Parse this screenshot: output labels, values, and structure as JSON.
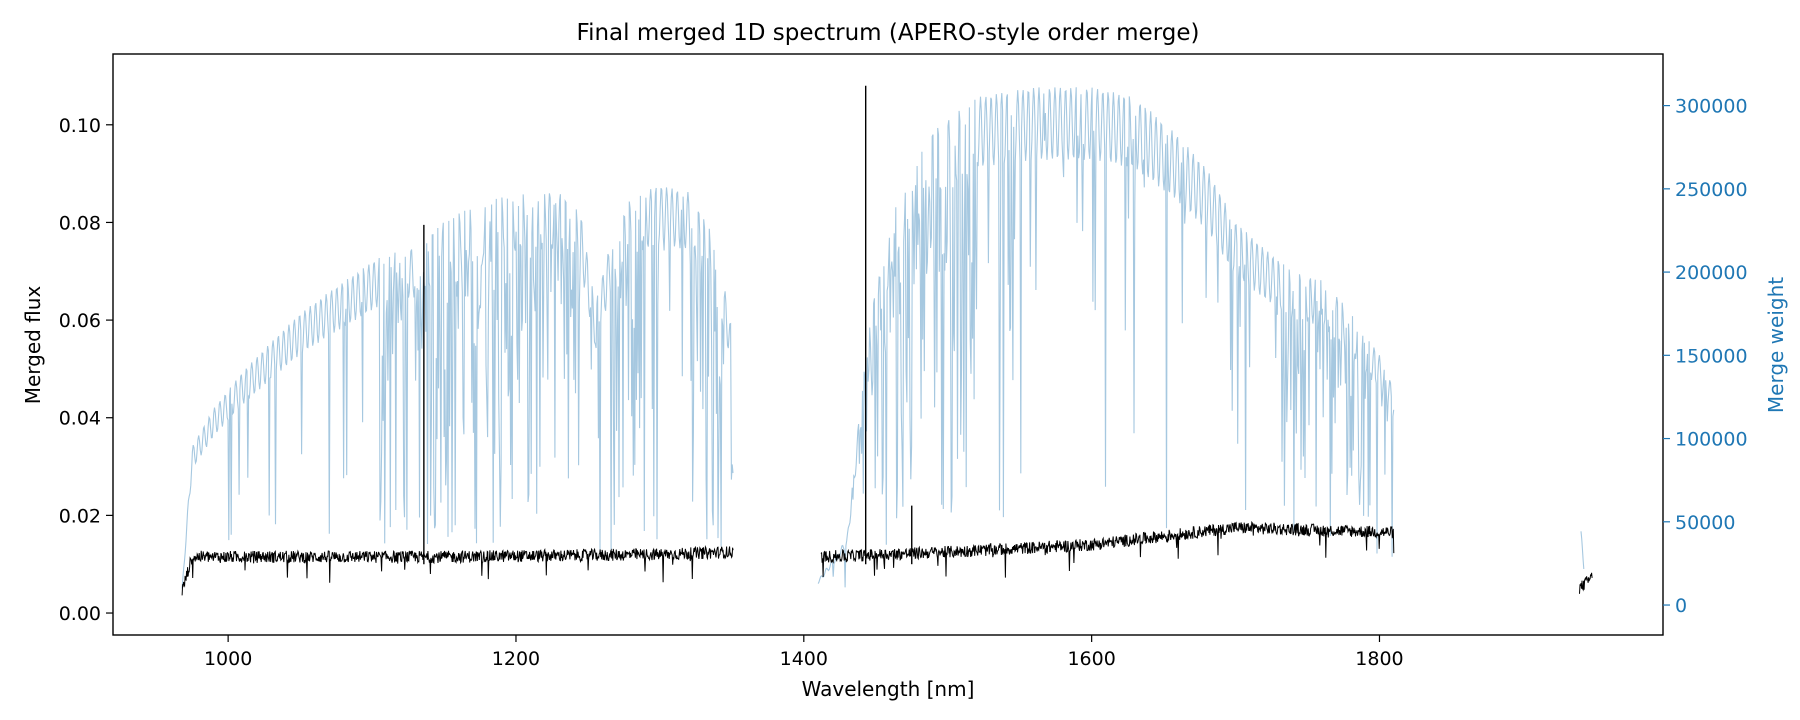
{
  "chart_data": {
    "type": "line",
    "title": "Final merged 1D spectrum (APERO-style order merge)",
    "xlabel": "Wavelength [nm]",
    "ylabel_left": "Merged flux",
    "ylabel_right": "Merge weight",
    "xlim": [
      920,
      1997
    ],
    "ylim_left": [
      -0.0045,
      0.1145
    ],
    "ylim_right": [
      -18000,
      331000
    ],
    "x_ticks": [
      1000,
      1200,
      1400,
      1600,
      1800
    ],
    "y_ticks_left": [
      0.0,
      0.02,
      0.04,
      0.06,
      0.08,
      0.1
    ],
    "y_ticks_left_labels": [
      "0.00",
      "0.02",
      "0.04",
      "0.06",
      "0.08",
      "0.10"
    ],
    "y_ticks_right": [
      0,
      50000,
      100000,
      150000,
      200000,
      250000,
      300000
    ],
    "y_ticks_right_labels": [
      "0",
      "50000",
      "100000",
      "150000",
      "200000",
      "250000",
      "300000"
    ],
    "grid": false,
    "colors": {
      "flux": "#000000",
      "weight": "#a6c8e0",
      "right_axis": "#1f77b4"
    },
    "series": [
      {
        "key": "weight",
        "axis": "right",
        "envelope": [
          [
            968,
            10000
          ],
          [
            975,
            95000
          ],
          [
            990,
            118000
          ],
          [
            1010,
            140000
          ],
          [
            1030,
            158000
          ],
          [
            1050,
            175000
          ],
          [
            1070,
            188000
          ],
          [
            1090,
            200000
          ],
          [
            1110,
            212000
          ],
          [
            1130,
            215000
          ],
          [
            1150,
            230000
          ],
          [
            1170,
            240000
          ],
          [
            1190,
            245000
          ],
          [
            1210,
            248000
          ],
          [
            1230,
            248000
          ],
          [
            1245,
            235000
          ],
          [
            1255,
            180000
          ],
          [
            1265,
            215000
          ],
          [
            1280,
            245000
          ],
          [
            1300,
            252000
          ],
          [
            1320,
            248000
          ],
          [
            1335,
            225000
          ],
          [
            1345,
            190000
          ],
          [
            1351,
            160000
          ]
        ],
        "envelope2": [
          [
            1410,
            15000
          ],
          [
            1430,
            40000
          ],
          [
            1445,
            170000
          ],
          [
            1465,
            245000
          ],
          [
            1490,
            285000
          ],
          [
            1520,
            305000
          ],
          [
            1560,
            311000
          ],
          [
            1600,
            311000
          ],
          [
            1630,
            305000
          ],
          [
            1660,
            282000
          ],
          [
            1680,
            262000
          ],
          [
            1700,
            230000
          ],
          [
            1720,
            214000
          ],
          [
            1740,
            200000
          ],
          [
            1760,
            195000
          ],
          [
            1780,
            176000
          ],
          [
            1800,
            150000
          ],
          [
            1810,
            130000
          ]
        ],
        "envelope3": [
          [
            1940,
            45000
          ],
          [
            1942,
            25000
          ]
        ]
      },
      {
        "key": "flux",
        "axis": "left",
        "segments": [
          {
            "x": [
              968,
              1351
            ],
            "base": [
              [
                968,
                0.0045
              ],
              [
                975,
                0.0115
              ],
              [
                1050,
                0.0115
              ],
              [
                1150,
                0.0115
              ],
              [
                1300,
                0.012
              ],
              [
                1351,
                0.0125
              ]
            ]
          },
          {
            "x": [
              1412,
              1810
            ],
            "base": [
              [
                1412,
                0.0115
              ],
              [
                1500,
                0.0125
              ],
              [
                1600,
                0.014
              ],
              [
                1700,
                0.0175
              ],
              [
                1810,
                0.0165
              ]
            ]
          },
          {
            "x": [
              1939,
              1948
            ],
            "base": [
              [
                1939,
                0.005
              ],
              [
                1948,
                0.0075
              ]
            ]
          }
        ],
        "spikes": [
          [
            1136,
            0.0795
          ],
          [
            1443,
            0.108
          ],
          [
            1475,
            0.022
          ]
        ]
      }
    ]
  }
}
